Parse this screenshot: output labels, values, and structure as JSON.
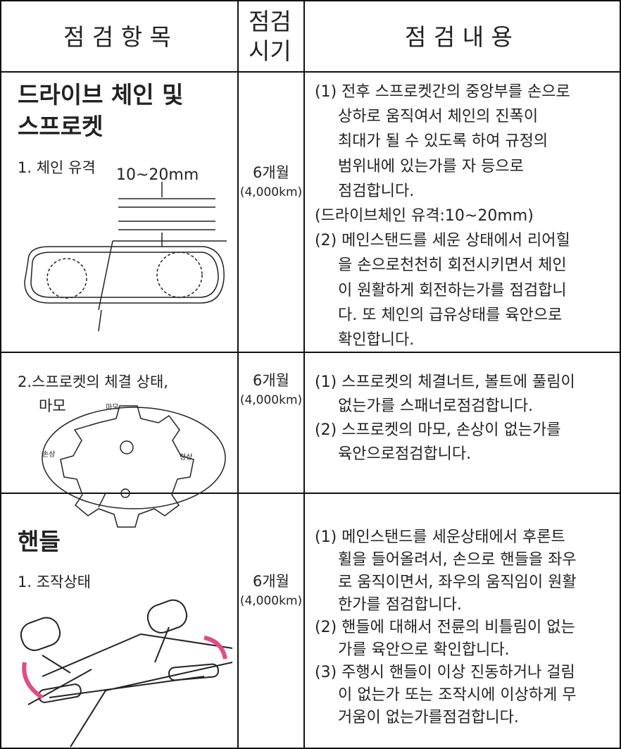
{
  "table": {
    "header": {
      "item": "점 검 항 목",
      "period": [
        "점검",
        "시기"
      ],
      "content": "점 검 내 용"
    },
    "rows": [
      {
        "title": [
          "드라이브 체인 및",
          "스프로켓"
        ],
        "subtitle": [
          "1. 체인 유격"
        ],
        "figure_labels": [
          "10~20mm"
        ],
        "period": [
          "6개월",
          "(4,000km)"
        ],
        "content": [
          "(1) 전후 스프로켓간의 중앙부를 손으로",
          "상하로 움직여서 체인의 진폭이",
          "최대가 될 수 있도록 하여 규정의",
          "범위내에 있는가를 자 등으로",
          "점검합니다.",
          "(드라이브체인 유격:10~20mm)",
          "(2) 메인스탠드를 세운 상태에서 리어힐",
          "을 손으로천천히 회전시키면서 체인",
          "이 원활하게 회전하는가를 점검합니",
          "다. 또 체인의 급유상태를 육안으로",
          "확인합니다."
        ]
      },
      {
        "title": [],
        "subtitle": [
          "2.스프로켓의 체결 상태,",
          "마모"
        ],
        "figure_labels": [
          "마모",
          "손상",
          "정상"
        ],
        "period": [
          "6개월",
          "(4,000km)"
        ],
        "content": [
          "(1) 스프로켓의 체결너트, 볼트에 풀림이",
          "없는가를 스패너로점검합니다.",
          "(2) 스프로켓의 마모, 손상이 없는가를",
          "육안으로점검합니다."
        ]
      },
      {
        "title": [
          "핸들"
        ],
        "subtitle": [
          "1. 조작상태"
        ],
        "figure_labels": [],
        "period": [
          "6개월",
          "(4,000km)"
        ],
        "content": [
          "(1) 메인스탠드를 세운상태에서 후론트",
          "휠을 들어올려서, 손으로 핸들을 좌우",
          "로 움직이면서, 좌우의 움직임이 원활",
          "한가를 점검합니다.",
          "(2) 핸들에 대해서 전륜의 비틀림이 없는",
          "가를 육안으로 확인합니다.",
          "(3) 주행시 핸들이 이상 진동하거나 걸림",
          "이 없는가 또는 조작시에 이상하게 무",
          "거움이 없는가를점검합니다."
        ]
      }
    ]
  }
}
